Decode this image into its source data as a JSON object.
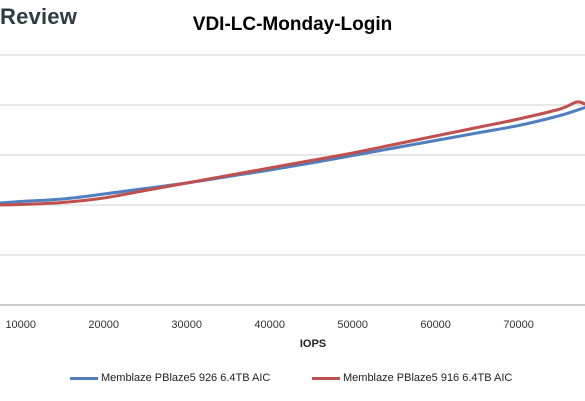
{
  "brand": "Review",
  "chart_data": {
    "type": "line",
    "title": "VDI-LC-Monday-Login",
    "xlabel": "IOPS",
    "ylabel": "",
    "xlim": [
      7500,
      78000
    ],
    "ylim": [
      0,
      5
    ],
    "xticks": [
      10000,
      20000,
      30000,
      40000,
      50000,
      60000,
      70000
    ],
    "grid": true,
    "legend_position": "bottom",
    "series": [
      {
        "name": "Memblaze PBlaze5 926 6.4TB AIC",
        "color": "#4f7fbf",
        "x": [
          7500,
          10000,
          15000,
          20000,
          25000,
          30000,
          35000,
          40000,
          45000,
          50000,
          55000,
          60000,
          65000,
          70000,
          75000,
          78000
        ],
        "y": [
          2.04,
          2.07,
          2.12,
          2.22,
          2.33,
          2.44,
          2.57,
          2.7,
          2.84,
          2.99,
          3.14,
          3.29,
          3.44,
          3.59,
          3.79,
          3.95
        ]
      },
      {
        "name": "Memblaze PBlaze5 916 6.4TB AIC",
        "color": "#c0504d",
        "x": [
          7500,
          10000,
          15000,
          20000,
          25000,
          30000,
          35000,
          40000,
          45000,
          50000,
          55000,
          60000,
          65000,
          70000,
          75000,
          77000,
          78000
        ],
        "y": [
          2.0,
          2.01,
          2.05,
          2.14,
          2.29,
          2.44,
          2.59,
          2.74,
          2.89,
          3.04,
          3.21,
          3.38,
          3.55,
          3.72,
          3.92,
          4.06,
          4.02
        ]
      }
    ]
  }
}
